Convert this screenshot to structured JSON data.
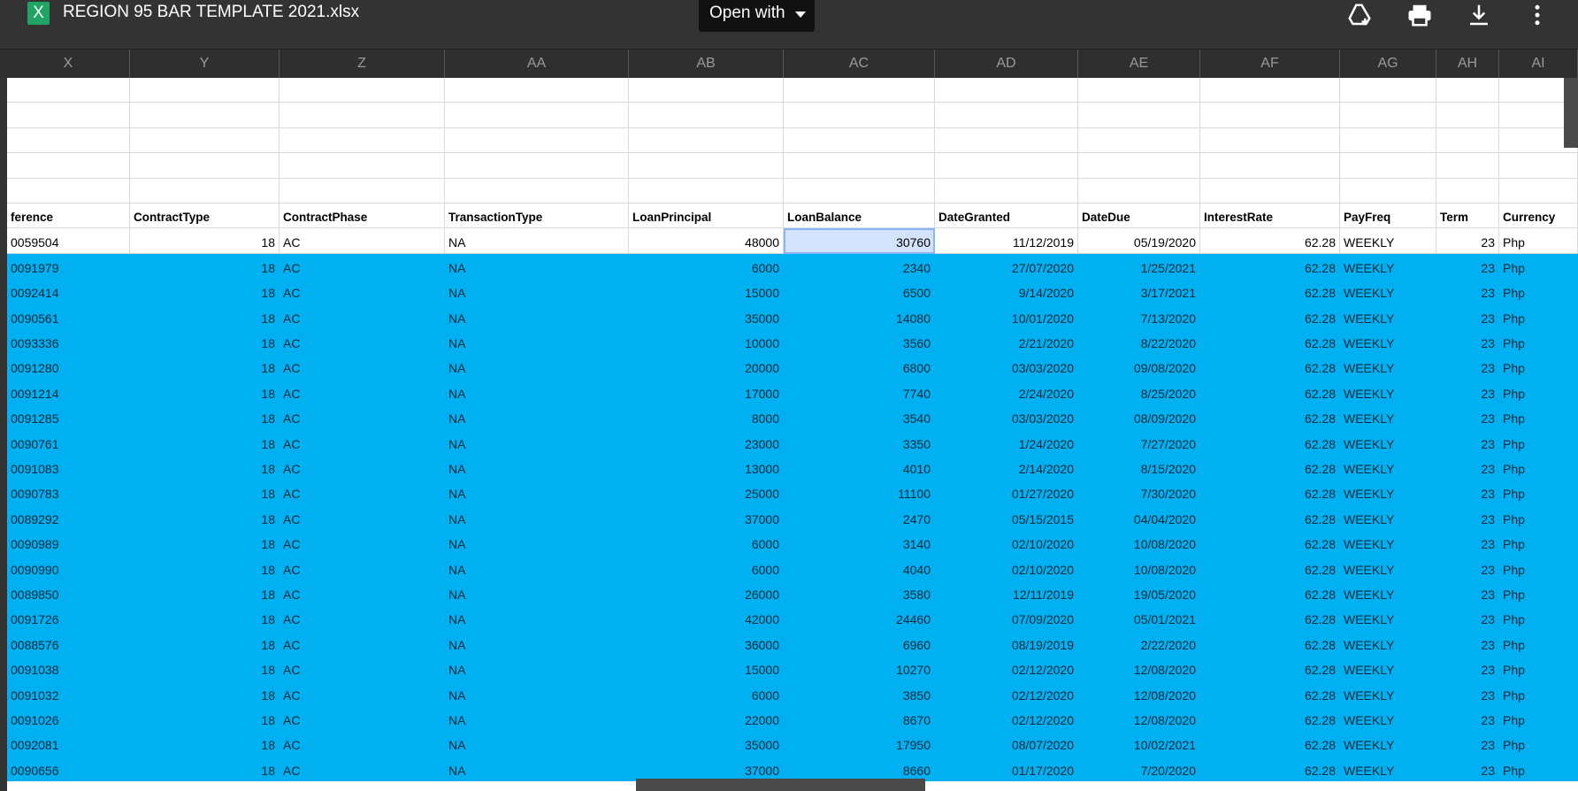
{
  "app": {
    "file_icon": "excel-icon",
    "file_icon_letter": "X",
    "title": "REGION 95 BAR TEMPLATE 2021.xlsx",
    "open_with_label": "Open with",
    "toolbar_icons": [
      "add-to-drive-icon",
      "print-icon",
      "download-icon",
      "more-vert-icon"
    ]
  },
  "colors": {
    "selection": "#00b0f0",
    "active_cell": "#d3e3fd",
    "excel_green": "#1fa463"
  },
  "columns": [
    "X",
    "Y",
    "Z",
    "AA",
    "AB",
    "AC",
    "AD",
    "AE",
    "AF",
    "AG",
    "AH",
    "AI"
  ],
  "headers": [
    "ference",
    "ContractType",
    "ContractPhase",
    "TransactionType",
    "LoanPrincipal",
    "LoanBalance",
    "DateGranted",
    "DateDue",
    "InterestRate",
    "PayFreq",
    "Term",
    "Currency"
  ],
  "rows": [
    [
      "0059504",
      "18",
      "AC",
      "NA",
      "48000",
      "30760",
      "11/12/2019",
      "05/19/2020",
      "62.28",
      "WEEKLY",
      "23",
      "Php"
    ],
    [
      "0091979",
      "18",
      "AC",
      "NA",
      "6000",
      "2340",
      "27/07/2020",
      "1/25/2021",
      "62.28",
      "WEEKLY",
      "23",
      "Php"
    ],
    [
      "0092414",
      "18",
      "AC",
      "NA",
      "15000",
      "6500",
      "9/14/2020",
      "3/17/2021",
      "62.28",
      "WEEKLY",
      "23",
      "Php"
    ],
    [
      "0090561",
      "18",
      "AC",
      "NA",
      "35000",
      "14080",
      "10/01/2020",
      "7/13/2020",
      "62.28",
      "WEEKLY",
      "23",
      "Php"
    ],
    [
      "0093336",
      "18",
      "AC",
      "NA",
      "10000",
      "3560",
      "2/21/2020",
      "8/22/2020",
      "62.28",
      "WEEKLY",
      "23",
      "Php"
    ],
    [
      "0091280",
      "18",
      "AC",
      "NA",
      "20000",
      "6800",
      "03/03/2020",
      "09/08/2020",
      "62.28",
      "WEEKLY",
      "23",
      "Php"
    ],
    [
      "0091214",
      "18",
      "AC",
      "NA",
      "17000",
      "7740",
      "2/24/2020",
      "8/25/2020",
      "62.28",
      "WEEKLY",
      "23",
      "Php"
    ],
    [
      "0091285",
      "18",
      "AC",
      "NA",
      "8000",
      "3540",
      "03/03/2020",
      "08/09/2020",
      "62.28",
      "WEEKLY",
      "23",
      "Php"
    ],
    [
      "0090761",
      "18",
      "AC",
      "NA",
      "23000",
      "3350",
      "1/24/2020",
      "7/27/2020",
      "62.28",
      "WEEKLY",
      "23",
      "Php"
    ],
    [
      "0091083",
      "18",
      "AC",
      "NA",
      "13000",
      "4010",
      "2/14/2020",
      "8/15/2020",
      "62.28",
      "WEEKLY",
      "23",
      "Php"
    ],
    [
      "0090783",
      "18",
      "AC",
      "NA",
      "25000",
      "11100",
      "01/27/2020",
      "7/30/2020",
      "62.28",
      "WEEKLY",
      "23",
      "Php"
    ],
    [
      "0089292",
      "18",
      "AC",
      "NA",
      "37000",
      "2470",
      "05/15/2015",
      "04/04/2020",
      "62.28",
      "WEEKLY",
      "23",
      "Php"
    ],
    [
      "0090989",
      "18",
      "AC",
      "NA",
      "6000",
      "3140",
      "02/10/2020",
      "10/08/2020",
      "62.28",
      "WEEKLY",
      "23",
      "Php"
    ],
    [
      "0090990",
      "18",
      "AC",
      "NA",
      "6000",
      "4040",
      "02/10/2020",
      "10/08/2020",
      "62.28",
      "WEEKLY",
      "23",
      "Php"
    ],
    [
      "0089850",
      "18",
      "AC",
      "NA",
      "26000",
      "3580",
      "12/11/2019",
      "19/05/2020",
      "62.28",
      "WEEKLY",
      "23",
      "Php"
    ],
    [
      "0091726",
      "18",
      "AC",
      "NA",
      "42000",
      "24460",
      "07/09/2020",
      "05/01/2021",
      "62.28",
      "WEEKLY",
      "23",
      "Php"
    ],
    [
      "0088576",
      "18",
      "AC",
      "NA",
      "36000",
      "6960",
      "08/19/2019",
      "2/22/2020",
      "62.28",
      "WEEKLY",
      "23",
      "Php"
    ],
    [
      "0091038",
      "18",
      "AC",
      "NA",
      "15000",
      "10270",
      "02/12/2020",
      "12/08/2020",
      "62.28",
      "WEEKLY",
      "23",
      "Php"
    ],
    [
      "0091032",
      "18",
      "AC",
      "NA",
      "6000",
      "3850",
      "02/12/2020",
      "12/08/2020",
      "62.28",
      "WEEKLY",
      "23",
      "Php"
    ],
    [
      "0091026",
      "18",
      "AC",
      "NA",
      "22000",
      "8670",
      "02/12/2020",
      "12/08/2020",
      "62.28",
      "WEEKLY",
      "23",
      "Php"
    ],
    [
      "0092081",
      "18",
      "AC",
      "NA",
      "35000",
      "17950",
      "08/07/2020",
      "10/02/2021",
      "62.28",
      "WEEKLY",
      "23",
      "Php"
    ],
    [
      "0090656",
      "18",
      "AC",
      "NA",
      "37000",
      "8660",
      "01/17/2020",
      "7/20/2020",
      "62.28",
      "WEEKLY",
      "23",
      "Php"
    ]
  ]
}
